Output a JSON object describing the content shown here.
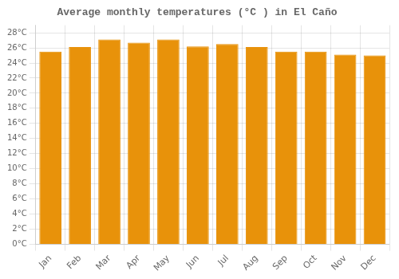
{
  "chart_data": {
    "type": "bar",
    "title": "Average monthly temperatures (°C ) in El Caño",
    "categories": [
      "Jan",
      "Feb",
      "Mar",
      "Apr",
      "May",
      "Jun",
      "Jul",
      "Aug",
      "Sep",
      "Oct",
      "Nov",
      "Dec"
    ],
    "values": [
      25.5,
      26.1,
      27.1,
      26.7,
      27.1,
      26.2,
      26.5,
      26.1,
      25.5,
      25.5,
      25.1,
      25.0
    ],
    "color": "#E8920A",
    "ylim": [
      0,
      29
    ],
    "yticks": [
      {
        "value": 0,
        "label": "0°C"
      },
      {
        "value": 2,
        "label": "2°C"
      },
      {
        "value": 4,
        "label": "4°C"
      },
      {
        "value": 6,
        "label": "6°C"
      },
      {
        "value": 8,
        "label": "8°C"
      },
      {
        "value": 10,
        "label": "10°C"
      },
      {
        "value": 12,
        "label": "12°C"
      },
      {
        "value": 14,
        "label": "14°C"
      },
      {
        "value": 16,
        "label": "16°C"
      },
      {
        "value": 18,
        "label": "18°C"
      },
      {
        "value": 20,
        "label": "20°C"
      },
      {
        "value": 22,
        "label": "22°C"
      },
      {
        "value": 24,
        "label": "24°C"
      },
      {
        "value": 26,
        "label": "26°C"
      },
      {
        "value": 28,
        "label": "28°C"
      }
    ],
    "grid": true
  }
}
